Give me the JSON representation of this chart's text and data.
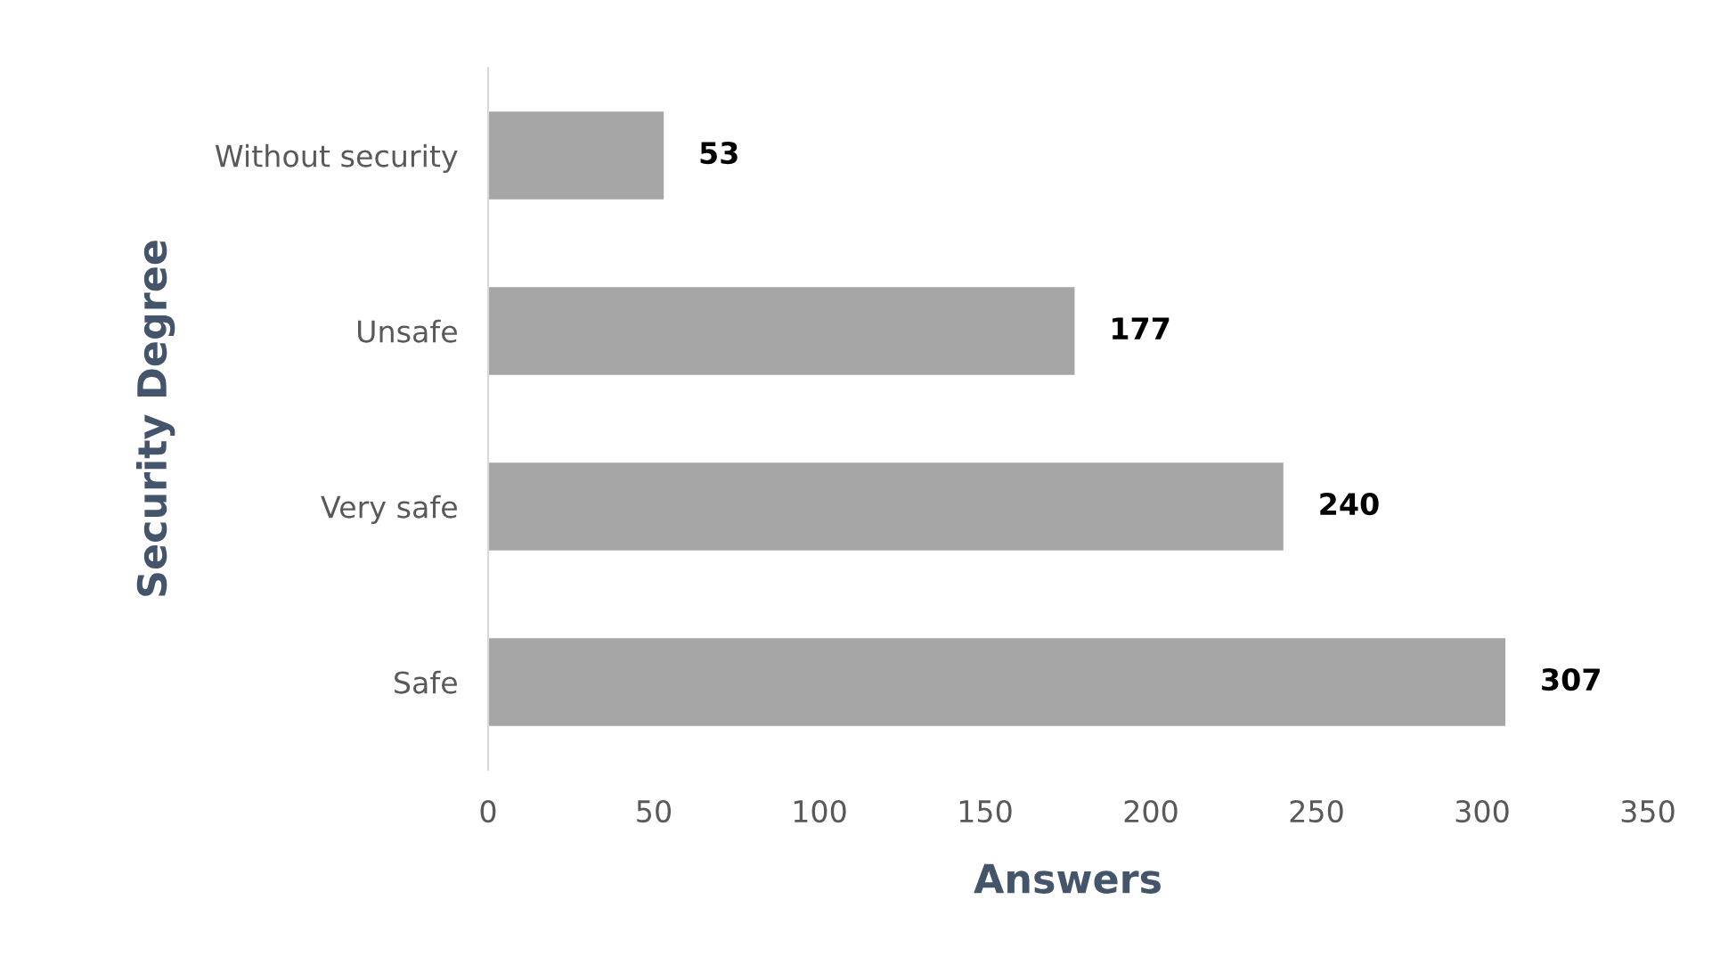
{
  "chart_data": {
    "type": "bar",
    "orientation": "horizontal",
    "xlabel": "Answers",
    "ylabel": "Security Degree",
    "categories": [
      "Without security",
      "Unsafe",
      "Very safe",
      "Safe"
    ],
    "values": [
      53,
      177,
      240,
      307
    ],
    "color": "#a6a6a6",
    "data_labels": true,
    "xlim": [
      0,
      350
    ],
    "xticks": [
      0,
      50,
      100,
      150,
      200,
      250,
      300,
      350
    ],
    "grid": false,
    "legend": false
  }
}
